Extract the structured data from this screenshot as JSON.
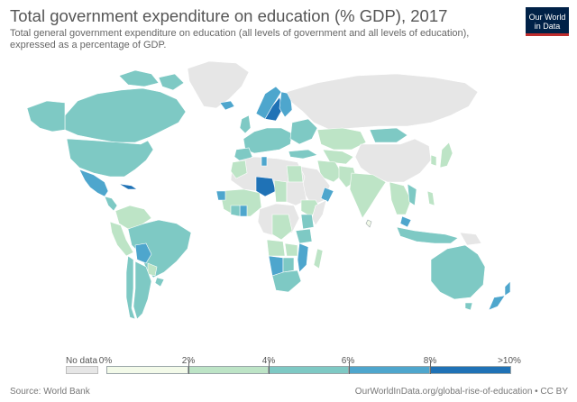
{
  "title": "Total government expenditure on education (% GDP), 2017",
  "subtitle": "Total general government expenditure on education (all levels of government and all levels of education), expressed as a percentage of GDP.",
  "logo": {
    "line1": "Our World",
    "line2": "in Data"
  },
  "legend": {
    "no_data_label": "No data",
    "ticks": [
      "0%",
      "2%",
      "4%",
      "6%",
      "8%",
      ">10%"
    ],
    "bins": [
      {
        "range": "0-2",
        "color": "#f3fae9"
      },
      {
        "range": "2-4",
        "color": "#bde4c6"
      },
      {
        "range": "4-6",
        "color": "#7ec9c4"
      },
      {
        "range": "6-8",
        "color": "#4ea6cd"
      },
      {
        "range": "8-10+",
        "color": "#1f72b6"
      }
    ],
    "no_data_color": "#e6e6e6"
  },
  "footer": {
    "source": "Source: World Bank",
    "url_license": "OurWorldInData.org/global-rise-of-education • CC BY"
  }
}
